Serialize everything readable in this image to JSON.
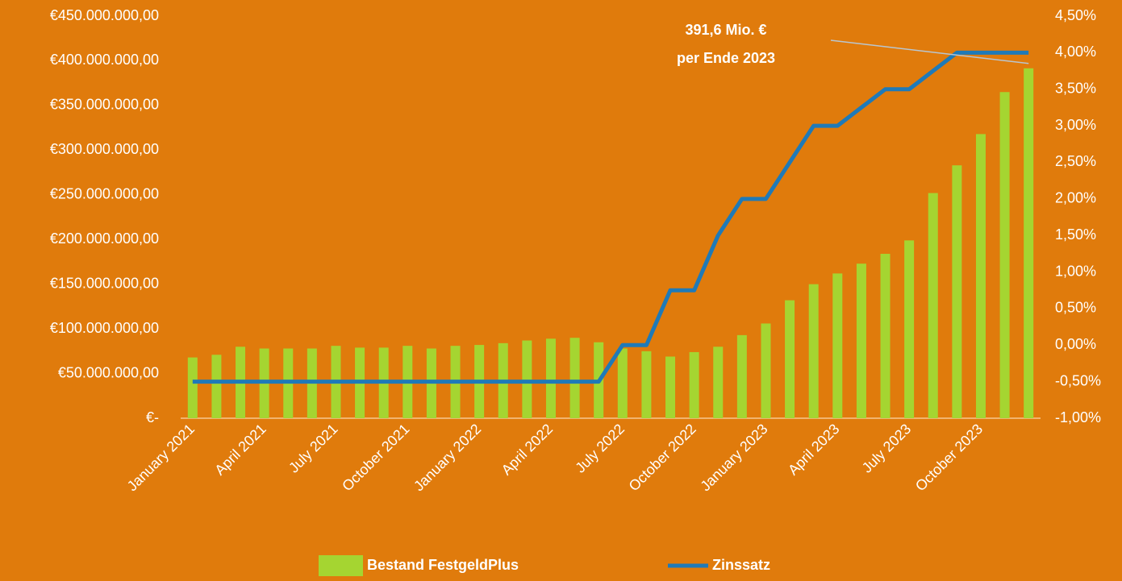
{
  "chart_data": {
    "type": "bar_line",
    "categories": [
      "January 2021",
      null,
      null,
      "April 2021",
      null,
      null,
      "July 2021",
      null,
      null,
      "October 2021",
      null,
      null,
      "January 2022",
      null,
      null,
      "April 2022",
      null,
      null,
      "July 2022",
      null,
      null,
      "October 2022",
      null,
      null,
      "January 2023",
      null,
      null,
      "April 2023",
      null,
      null,
      "July 2023",
      null,
      null,
      "October 2023",
      null,
      null
    ],
    "series": [
      {
        "name": "Bestand FestgeldPlus",
        "type": "bar",
        "color": "#a5d531",
        "values": [
          68000000,
          71000000,
          80000000,
          78000000,
          78000000,
          78000000,
          81000000,
          79000000,
          79000000,
          81000000,
          78000000,
          81000000,
          82000000,
          84000000,
          87000000,
          89000000,
          90000000,
          85000000,
          78000000,
          75000000,
          69000000,
          74000000,
          80000000,
          93000000,
          106000000,
          132000000,
          150000000,
          162000000,
          173000000,
          184000000,
          199000000,
          252000000,
          283000000,
          318000000,
          365000000,
          391600000
        ]
      },
      {
        "name": "Zinssatz",
        "type": "line",
        "axis": "y2",
        "color": "#1f7ab8",
        "values": [
          -0.5,
          -0.5,
          -0.5,
          -0.5,
          -0.5,
          -0.5,
          -0.5,
          -0.5,
          -0.5,
          -0.5,
          -0.5,
          -0.5,
          -0.5,
          -0.5,
          -0.5,
          -0.5,
          -0.5,
          -0.5,
          0,
          0,
          0.75,
          0.75,
          1.5,
          2,
          2,
          2.5,
          3,
          3,
          3.25,
          3.5,
          3.5,
          3.75,
          4,
          4,
          4,
          4
        ]
      }
    ],
    "ylim": [
      0,
      450000000
    ],
    "yticks": [
      {
        "value": 0,
        "label": "€-"
      },
      {
        "value": 50000000,
        "label": "€50.000.000,00"
      },
      {
        "value": 100000000,
        "label": "€100.000.000,00"
      },
      {
        "value": 150000000,
        "label": "€150.000.000,00"
      },
      {
        "value": 200000000,
        "label": "€200.000.000,00"
      },
      {
        "value": 250000000,
        "label": "€250.000.000,00"
      },
      {
        "value": 300000000,
        "label": "€300.000.000,00"
      },
      {
        "value": 350000000,
        "label": "€350.000.000,00"
      },
      {
        "value": 400000000,
        "label": "€400.000.000,00"
      },
      {
        "value": 450000000,
        "label": "€450.000.000,00"
      }
    ],
    "y2lim": [
      -1,
      4.5
    ],
    "y2ticks": [
      {
        "value": -1,
        "label": "-1,00%"
      },
      {
        "value": -0.5,
        "label": "-0,50%"
      },
      {
        "value": 0,
        "label": "0,00%"
      },
      {
        "value": 0.5,
        "label": "0,50%"
      },
      {
        "value": 1,
        "label": "1,00%"
      },
      {
        "value": 1.5,
        "label": "1,50%"
      },
      {
        "value": 2,
        "label": "2,00%"
      },
      {
        "value": 2.5,
        "label": "2,50%"
      },
      {
        "value": 3,
        "label": "3,00%"
      },
      {
        "value": 3.5,
        "label": "3,50%"
      },
      {
        "value": 4,
        "label": "4,00%"
      },
      {
        "value": 4.5,
        "label": "4,50%"
      }
    ],
    "annotations": [
      "391,6 Mio. €",
      "per Ende 2023"
    ],
    "legend": "bottom"
  }
}
